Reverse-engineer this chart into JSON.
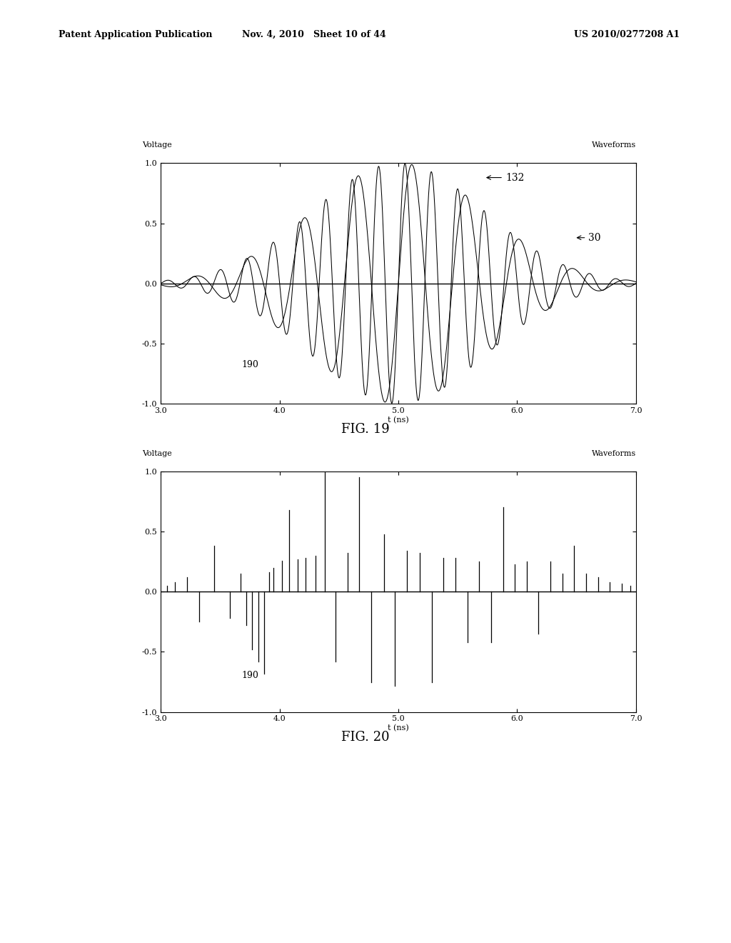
{
  "header_left": "Patent Application Publication",
  "header_center": "Nov. 4, 2010   Sheet 10 of 44",
  "header_right": "US 2010/0277208 A1",
  "fig19_title": "FIG. 19",
  "fig20_title": "FIG. 20",
  "ylabel": "Voltage",
  "xlabel": "t (ns)",
  "corner_label": "Waveforms",
  "xlim": [
    3.0,
    7.0
  ],
  "ylim": [
    -1.0,
    1.0
  ],
  "xticks": [
    3.0,
    4.0,
    5.0,
    6.0,
    7.0
  ],
  "yticks": [
    -1.0,
    -0.5,
    0.0,
    0.5,
    1.0
  ],
  "background_color": "#ffffff",
  "line_color": "#000000",
  "fig20_stems_t": [
    3.05,
    3.12,
    3.22,
    3.32,
    3.45,
    3.58,
    3.67,
    3.72,
    3.77,
    3.82,
    3.87,
    3.91,
    3.95,
    4.02,
    4.08,
    4.15,
    4.22,
    4.3,
    4.38,
    4.47,
    4.57,
    4.67,
    4.77,
    4.88,
    4.97,
    5.07,
    5.18,
    5.28,
    5.38,
    5.48,
    5.58,
    5.68,
    5.78,
    5.88,
    5.98,
    6.08,
    6.18,
    6.28,
    6.38,
    6.48,
    6.58,
    6.68,
    6.78,
    6.88,
    6.95
  ],
  "fig20_stems_h": [
    0.05,
    0.08,
    0.12,
    -0.25,
    0.38,
    -0.22,
    0.15,
    -0.28,
    -0.48,
    -0.58,
    -0.68,
    0.16,
    0.2,
    0.26,
    0.68,
    0.27,
    0.28,
    0.3,
    1.0,
    -0.58,
    0.32,
    0.95,
    -0.75,
    0.48,
    -0.78,
    0.34,
    0.32,
    -0.75,
    0.28,
    0.28,
    -0.42,
    0.25,
    -0.42,
    0.7,
    0.23,
    0.25,
    -0.35,
    0.25,
    0.15,
    0.38,
    0.15,
    0.12,
    0.08,
    0.07,
    0.05
  ]
}
